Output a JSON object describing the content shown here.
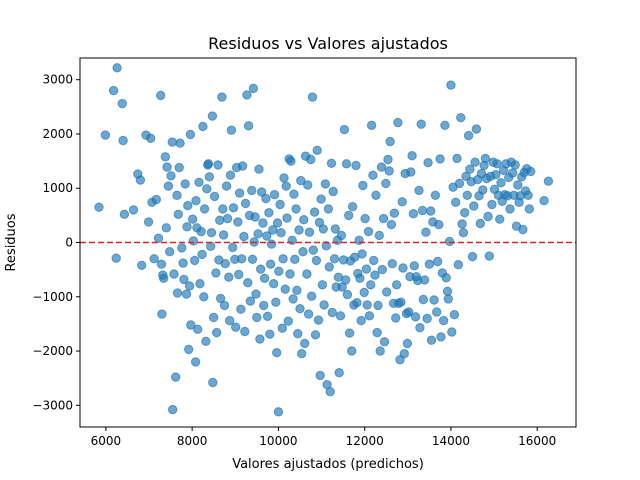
{
  "chart_data": {
    "type": "scatter",
    "title": "Residuos vs Valores ajustados",
    "xlabel": "Valores ajustados (predichos)",
    "ylabel": "Residuos",
    "xlim": [
      5400,
      16900
    ],
    "ylim": [
      -3400,
      3400
    ],
    "xticks": [
      6000,
      8000,
      10000,
      12000,
      14000,
      16000
    ],
    "yticks": [
      -3000,
      -2000,
      -1000,
      0,
      1000,
      2000,
      3000
    ],
    "grid": false,
    "legend": "none",
    "point_color": "#1f77b4",
    "point_alpha": 0.65,
    "reference_line": {
      "y": 0,
      "color": "#d62728",
      "style": "dashed"
    },
    "points": [
      [
        5840,
        650
      ],
      [
        5990,
        1980
      ],
      [
        6180,
        2800
      ],
      [
        6260,
        3220
      ],
      [
        6240,
        -290
      ],
      [
        6380,
        2560
      ],
      [
        6400,
        1880
      ],
      [
        6430,
        520
      ],
      [
        6640,
        600
      ],
      [
        6740,
        1260
      ],
      [
        6800,
        1150
      ],
      [
        6830,
        -420
      ],
      [
        6930,
        1980
      ],
      [
        6990,
        380
      ],
      [
        7040,
        1920
      ],
      [
        7070,
        740
      ],
      [
        7120,
        -300
      ],
      [
        7170,
        790
      ],
      [
        7220,
        80
      ],
      [
        7270,
        2710
      ],
      [
        7290,
        -400
      ],
      [
        7300,
        -1320
      ],
      [
        7320,
        -600
      ],
      [
        7340,
        -660
      ],
      [
        7380,
        1580
      ],
      [
        7400,
        270
      ],
      [
        7420,
        1390
      ],
      [
        7450,
        1040
      ],
      [
        7480,
        -170
      ],
      [
        7510,
        1230
      ],
      [
        7540,
        1850
      ],
      [
        7550,
        -3080
      ],
      [
        7580,
        -580
      ],
      [
        7620,
        -2480
      ],
      [
        7650,
        870
      ],
      [
        7660,
        -930
      ],
      [
        7680,
        520
      ],
      [
        7700,
        1380
      ],
      [
        7720,
        1830
      ],
      [
        7760,
        -100
      ],
      [
        7790,
        -380
      ],
      [
        7810,
        -680
      ],
      [
        7840,
        1080
      ],
      [
        7870,
        -950
      ],
      [
        7880,
        290
      ],
      [
        7900,
        680
      ],
      [
        7920,
        -1970
      ],
      [
        7940,
        -800
      ],
      [
        7960,
        1990
      ],
      [
        7970,
        -1520
      ],
      [
        8010,
        430
      ],
      [
        8030,
        30
      ],
      [
        8060,
        -330
      ],
      [
        8080,
        -2200
      ],
      [
        8090,
        770
      ],
      [
        8110,
        270
      ],
      [
        8130,
        -1600
      ],
      [
        8160,
        1110
      ],
      [
        8180,
        -760
      ],
      [
        8210,
        200
      ],
      [
        8230,
        -220
      ],
      [
        8250,
        2140
      ],
      [
        8270,
        -1000
      ],
      [
        8290,
        620
      ],
      [
        8320,
        -1820
      ],
      [
        8340,
        990
      ],
      [
        8360,
        1430
      ],
      [
        8380,
        1450
      ],
      [
        8400,
        1210
      ],
      [
        8430,
        -70
      ],
      [
        8450,
        180
      ],
      [
        8470,
        2330
      ],
      [
        8480,
        -2580
      ],
      [
        8500,
        -1380
      ],
      [
        8520,
        850
      ],
      [
        8550,
        -560
      ],
      [
        8570,
        -1660
      ],
      [
        8600,
        1430
      ],
      [
        8620,
        -320
      ],
      [
        8640,
        410
      ],
      [
        8660,
        -1030
      ],
      [
        8690,
        2680
      ],
      [
        8710,
        620
      ],
      [
        8730,
        140
      ],
      [
        8750,
        -1160
      ],
      [
        8770,
        -390
      ],
      [
        8800,
        1040
      ],
      [
        8820,
        440
      ],
      [
        8850,
        -640
      ],
      [
        8870,
        -1440
      ],
      [
        8890,
        1240
      ],
      [
        8910,
        2070
      ],
      [
        8940,
        -90
      ],
      [
        8960,
        640
      ],
      [
        8990,
        -310
      ],
      [
        9010,
        -1560
      ],
      [
        9030,
        1380
      ],
      [
        9060,
        380
      ],
      [
        9080,
        -590
      ],
      [
        9100,
        910
      ],
      [
        9130,
        -1230
      ],
      [
        9150,
        -300
      ],
      [
        9170,
        1410
      ],
      [
        9200,
        110
      ],
      [
        9220,
        -1640
      ],
      [
        9240,
        720
      ],
      [
        9270,
        2720
      ],
      [
        9290,
        -740
      ],
      [
        9310,
        2150
      ],
      [
        9330,
        500
      ],
      [
        9350,
        -1080
      ],
      [
        9380,
        960
      ],
      [
        9400,
        -310
      ],
      [
        9420,
        2840
      ],
      [
        9440,
        10
      ],
      [
        9460,
        470
      ],
      [
        9480,
        -950
      ],
      [
        9500,
        -1380
      ],
      [
        9530,
        160
      ],
      [
        9550,
        1350
      ],
      [
        9570,
        -1780
      ],
      [
        9590,
        -490
      ],
      [
        9610,
        930
      ],
      [
        9640,
        360
      ],
      [
        9660,
        -1160
      ],
      [
        9680,
        -660
      ],
      [
        9710,
        810
      ],
      [
        9730,
        120
      ],
      [
        9750,
        -1360
      ],
      [
        9780,
        550
      ],
      [
        9800,
        -1690
      ],
      [
        9820,
        -400
      ],
      [
        9840,
        -30
      ],
      [
        9870,
        230
      ],
      [
        9890,
        -760
      ],
      [
        9910,
        880
      ],
      [
        9940,
        -1100
      ],
      [
        9960,
        -2030
      ],
      [
        9980,
        360
      ],
      [
        10000,
        -3120
      ],
      [
        10010,
        -530
      ],
      [
        10040,
        700
      ],
      [
        10060,
        180
      ],
      [
        10090,
        -1580
      ],
      [
        10110,
        -300
      ],
      [
        10130,
        1190
      ],
      [
        10160,
        -860
      ],
      [
        10180,
        1040
      ],
      [
        10200,
        450
      ],
      [
        10230,
        -1450
      ],
      [
        10250,
        1540
      ],
      [
        10270,
        -580
      ],
      [
        10290,
        1500
      ],
      [
        10320,
        40
      ],
      [
        10340,
        -1040
      ],
      [
        10360,
        890
      ],
      [
        10380,
        -310
      ],
      [
        10410,
        620
      ],
      [
        10430,
        -880
      ],
      [
        10450,
        -1680
      ],
      [
        10480,
        230
      ],
      [
        10500,
        -1220
      ],
      [
        10520,
        1140
      ],
      [
        10540,
        -2050
      ],
      [
        10570,
        -170
      ],
      [
        10590,
        420
      ],
      [
        10610,
        -1860
      ],
      [
        10630,
        1590
      ],
      [
        10660,
        -580
      ],
      [
        10680,
        1060
      ],
      [
        10700,
        -1320
      ],
      [
        10720,
        190
      ],
      [
        10750,
        1530
      ],
      [
        10770,
        -990
      ],
      [
        10790,
        2680
      ],
      [
        10810,
        -140
      ],
      [
        10840,
        560
      ],
      [
        10860,
        -1700
      ],
      [
        10880,
        -330
      ],
      [
        10900,
        1700
      ],
      [
        10930,
        -1430
      ],
      [
        10950,
        370
      ],
      [
        10970,
        -2450
      ],
      [
        10990,
        800
      ],
      [
        11020,
        -780
      ],
      [
        11040,
        250
      ],
      [
        11060,
        -1150
      ],
      [
        11090,
        1080
      ],
      [
        11110,
        -60
      ],
      [
        11130,
        -2620
      ],
      [
        11160,
        620
      ],
      [
        11180,
        -450
      ],
      [
        11200,
        -2750
      ],
      [
        11230,
        1460
      ],
      [
        11250,
        -1290
      ],
      [
        11270,
        940
      ],
      [
        11300,
        -300
      ],
      [
        11320,
        250
      ],
      [
        11340,
        -820
      ],
      [
        11370,
        40
      ],
      [
        11390,
        -640
      ],
      [
        11410,
        -2400
      ],
      [
        11440,
        -1350
      ],
      [
        11460,
        130
      ],
      [
        11480,
        -820
      ],
      [
        11510,
        -320
      ],
      [
        11530,
        2080
      ],
      [
        11560,
        -690
      ],
      [
        11580,
        1450
      ],
      [
        11600,
        -960
      ],
      [
        11630,
        500
      ],
      [
        11650,
        -1670
      ],
      [
        11670,
        -340
      ],
      [
        11700,
        -2000
      ],
      [
        11720,
        660
      ],
      [
        11750,
        -1150
      ],
      [
        11770,
        -270
      ],
      [
        11800,
        1420
      ],
      [
        11820,
        -1110
      ],
      [
        11840,
        -570
      ],
      [
        11870,
        40
      ],
      [
        11890,
        -660
      ],
      [
        11920,
        -1440
      ],
      [
        11940,
        -210
      ],
      [
        11960,
        1050
      ],
      [
        11990,
        -920
      ],
      [
        12010,
        440
      ],
      [
        12040,
        -490
      ],
      [
        12060,
        -1150
      ],
      [
        12090,
        200
      ],
      [
        12110,
        -1350
      ],
      [
        12140,
        -780
      ],
      [
        12160,
        2160
      ],
      [
        12190,
        1240
      ],
      [
        12210,
        -330
      ],
      [
        12240,
        -600
      ],
      [
        12260,
        870
      ],
      [
        12290,
        -1660
      ],
      [
        12310,
        -1160
      ],
      [
        12340,
        130
      ],
      [
        12360,
        -2000
      ],
      [
        12390,
        1390
      ],
      [
        12410,
        -500
      ],
      [
        12440,
        440
      ],
      [
        12460,
        -1830
      ],
      [
        12490,
        1090
      ],
      [
        12510,
        -910
      ],
      [
        12540,
        1530
      ],
      [
        12570,
        1320
      ],
      [
        12590,
        1860
      ],
      [
        12620,
        330
      ],
      [
        12640,
        -390
      ],
      [
        12670,
        -1120
      ],
      [
        12690,
        540
      ],
      [
        12720,
        -1390
      ],
      [
        12740,
        -780
      ],
      [
        12770,
        2210
      ],
      [
        12790,
        -1120
      ],
      [
        12820,
        -2160
      ],
      [
        12840,
        -1100
      ],
      [
        12870,
        750
      ],
      [
        12890,
        -470
      ],
      [
        12920,
        -2050
      ],
      [
        12940,
        1270
      ],
      [
        12970,
        -1310
      ],
      [
        12990,
        -1860
      ],
      [
        13020,
        -1280
      ],
      [
        13050,
        -630
      ],
      [
        13070,
        1300
      ],
      [
        13100,
        1600
      ],
      [
        13130,
        530
      ],
      [
        13150,
        -430
      ],
      [
        13180,
        -1370
      ],
      [
        13200,
        -630
      ],
      [
        13230,
        -700
      ],
      [
        13260,
        960
      ],
      [
        13280,
        -1570
      ],
      [
        13310,
        2180
      ],
      [
        13340,
        590
      ],
      [
        13360,
        -1050
      ],
      [
        13390,
        -690
      ],
      [
        13420,
        190
      ],
      [
        13450,
        -1400
      ],
      [
        13470,
        1470
      ],
      [
        13500,
        -400
      ],
      [
        13530,
        580
      ],
      [
        13550,
        -1800
      ],
      [
        13580,
        380
      ],
      [
        13610,
        -1060
      ],
      [
        13640,
        870
      ],
      [
        13670,
        -1280
      ],
      [
        13690,
        -350
      ],
      [
        13720,
        330
      ],
      [
        13750,
        1540
      ],
      [
        13770,
        -1740
      ],
      [
        13800,
        -560
      ],
      [
        13830,
        -1440
      ],
      [
        13860,
        2160
      ],
      [
        13890,
        -650
      ],
      [
        13920,
        -900
      ],
      [
        13940,
        -1040
      ],
      [
        13970,
        20
      ],
      [
        14000,
        2900
      ],
      [
        14020,
        -1650
      ],
      [
        14050,
        1020
      ],
      [
        14080,
        -1330
      ],
      [
        14110,
        740
      ],
      [
        14140,
        1550
      ],
      [
        14170,
        -410
      ],
      [
        14200,
        1090
      ],
      [
        14230,
        2300
      ],
      [
        14260,
        340
      ],
      [
        14290,
        180
      ],
      [
        14320,
        550
      ],
      [
        14350,
        1220
      ],
      [
        14380,
        870
      ],
      [
        14410,
        1970
      ],
      [
        14440,
        1350
      ],
      [
        14470,
        1120
      ],
      [
        14500,
        -260
      ],
      [
        14530,
        670
      ],
      [
        14560,
        1480
      ],
      [
        14590,
        2090
      ],
      [
        14620,
        1160
      ],
      [
        14650,
        860
      ],
      [
        14680,
        350
      ],
      [
        14710,
        1270
      ],
      [
        14740,
        970
      ],
      [
        14770,
        1420
      ],
      [
        14800,
        1550
      ],
      [
        14830,
        1180
      ],
      [
        14860,
        480
      ],
      [
        14890,
        -250
      ],
      [
        14920,
        1220
      ],
      [
        14950,
        700
      ],
      [
        14980,
        1480
      ],
      [
        15010,
        980
      ],
      [
        15040,
        1250
      ],
      [
        15070,
        1450
      ],
      [
        15100,
        870
      ],
      [
        15130,
        430
      ],
      [
        15160,
        1100
      ],
      [
        15190,
        760
      ],
      [
        15220,
        1330
      ],
      [
        15250,
        880
      ],
      [
        15280,
        1450
      ],
      [
        15310,
        860
      ],
      [
        15340,
        1200
      ],
      [
        15370,
        620
      ],
      [
        15400,
        1480
      ],
      [
        15430,
        1280
      ],
      [
        15460,
        870
      ],
      [
        15490,
        1430
      ],
      [
        15520,
        300
      ],
      [
        15550,
        1060
      ],
      [
        15580,
        740
      ],
      [
        15610,
        860
      ],
      [
        15640,
        1210
      ],
      [
        15670,
        240
      ],
      [
        15700,
        1290
      ],
      [
        15730,
        950
      ],
      [
        15760,
        1360
      ],
      [
        15790,
        870
      ],
      [
        15820,
        620
      ],
      [
        15850,
        1310
      ],
      [
        16160,
        770
      ],
      [
        16260,
        1130
      ]
    ]
  }
}
